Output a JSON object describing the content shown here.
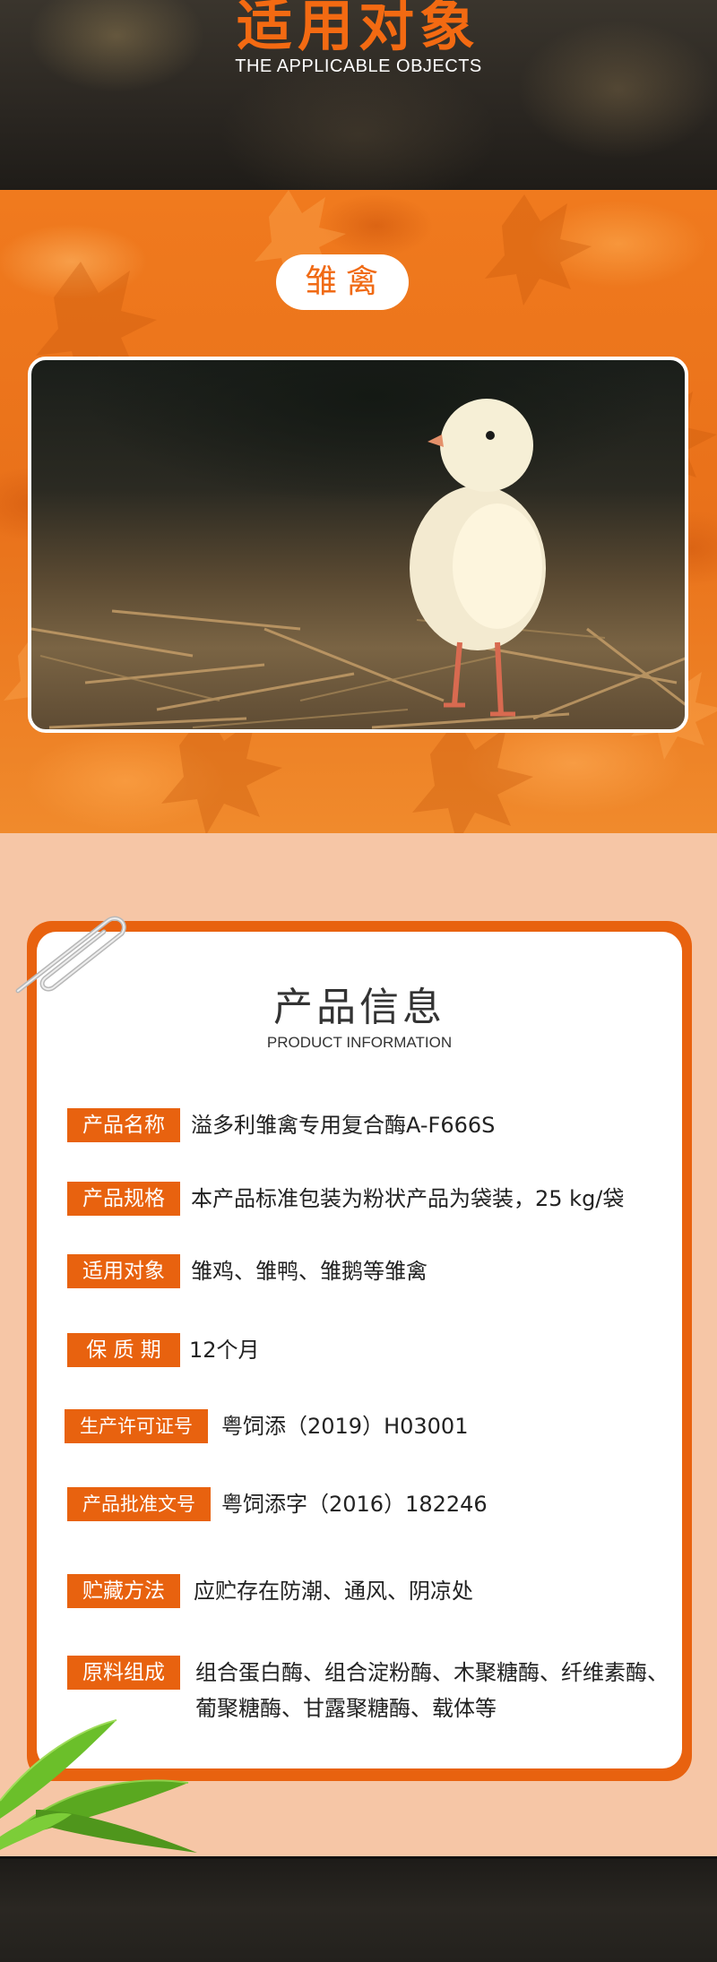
{
  "header": {
    "title": "适用对象",
    "subtitle": "THE APPLICABLE OBJECTS"
  },
  "target": {
    "label": "雏禽",
    "image_subject": "chick-photo"
  },
  "product_info": {
    "title": "产品信息",
    "subtitle": "PRODUCT INFORMATION",
    "rows": [
      {
        "label": "产品名称",
        "value": "溢多利雏禽专用复合酶A-F666S"
      },
      {
        "label": "产品规格",
        "value": "本产品标准包装为粉状产品为袋装，25 kg/袋"
      },
      {
        "label": "适用对象",
        "value": "雏鸡、雏鸭、雏鹅等雏禽"
      },
      {
        "label": "保 质 期",
        "value": "12个月"
      },
      {
        "label": "生产许可证号",
        "value": "粤饲添（2019）H03001"
      },
      {
        "label": "产品批准文号",
        "value": "粤饲添字（2016）182246"
      },
      {
        "label": "贮藏方法",
        "value": "应贮存在防潮、通风、阴凉处"
      },
      {
        "label": "原料组成",
        "value": "组合蛋白酶、组合淀粉酶、木聚糖酶、纤维素酶、葡聚糖酶、甘露聚糖酶、载体等"
      }
    ]
  },
  "colors": {
    "accent": "#e8620f",
    "title_orange": "#f36a12",
    "peach_bg": "#f6c6a6"
  }
}
